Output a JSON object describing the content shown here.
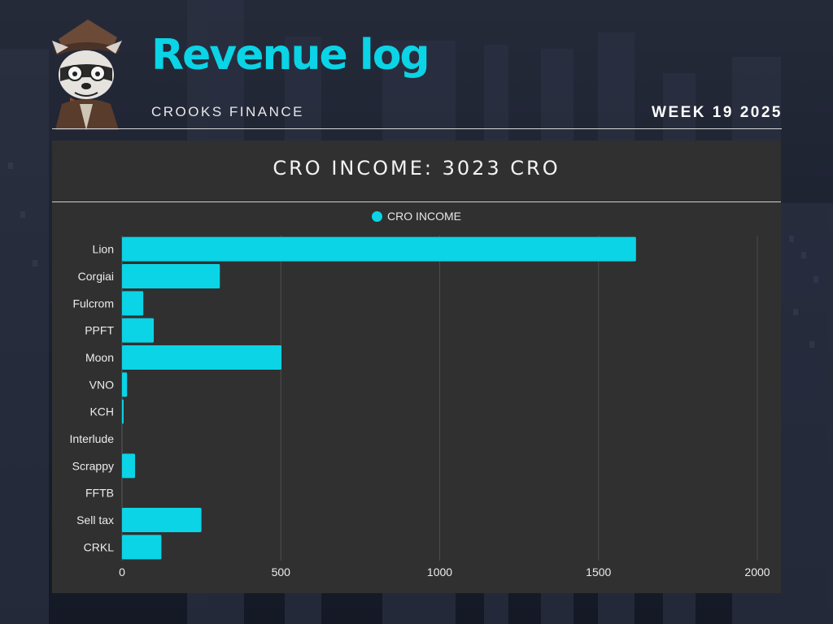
{
  "header": {
    "title": "Revenue log",
    "subtitle": "CROOKS FINANCE",
    "week": "WEEK 19 2025"
  },
  "colors": {
    "accent": "#0ad4e6",
    "panel": "#303030"
  },
  "chart_data": {
    "type": "bar",
    "orientation": "horizontal",
    "title": "CRO INCOME: 3023 CRO",
    "categories": [
      "Lion",
      "Corgiai",
      "Fulcrom",
      "PPFT",
      "Moon",
      "VNO",
      "KCH",
      "Interlude",
      "Scrappy",
      "FFTB",
      "Sell tax",
      "CRKL"
    ],
    "series": [
      {
        "name": "CRO INCOME",
        "values": [
          1618,
          308,
          67,
          100,
          502,
          16,
          5,
          0,
          41,
          0,
          250,
          124
        ],
        "color": "#0ad4e6"
      }
    ],
    "xlim": [
      0,
      2000
    ],
    "xticks": [
      "0",
      "500",
      "1000",
      "1500",
      "2000"
    ],
    "grid": true,
    "legend": "top-center"
  }
}
